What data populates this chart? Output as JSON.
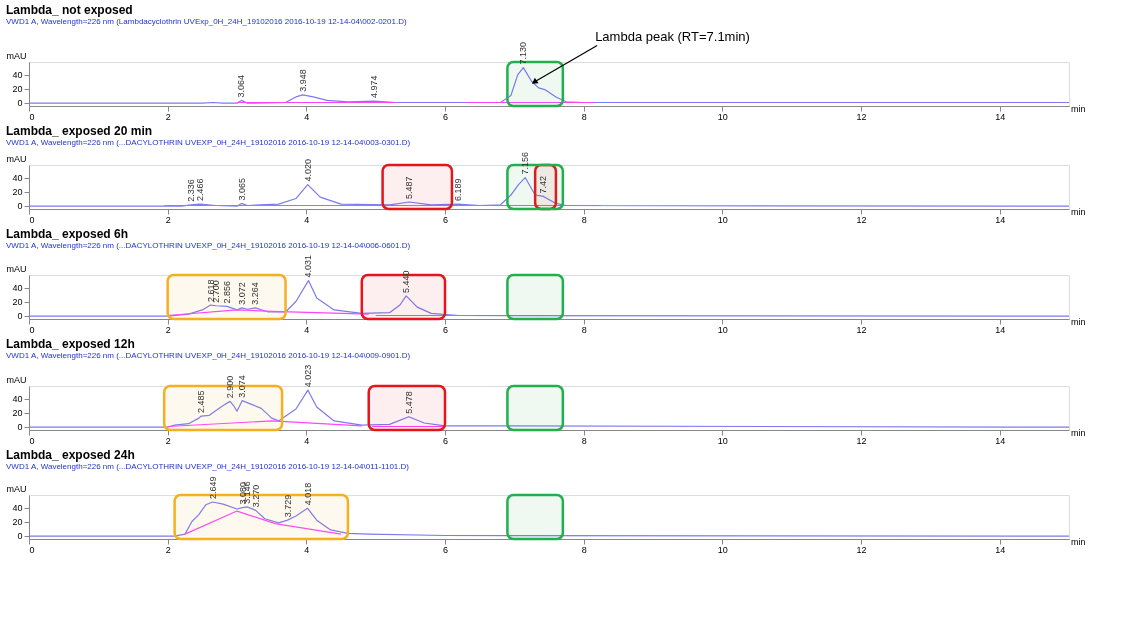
{
  "chart_data": [
    {
      "type": "line",
      "title": "Lambda_ not exposed",
      "grid": false,
      "subtitle": "VWD1 A, Wavelength=226 nm (Lambdacyclothrin UVExp_0H_24H_19102016 2016-10-19 12-14-04\\002-0201.D)",
      "xlabel": "min",
      "ylabel": "mAU",
      "xlim": [
        0,
        15
      ],
      "xticks": [
        0,
        2,
        4,
        6,
        8,
        10,
        12,
        14
      ],
      "ylim": [
        -5,
        58
      ],
      "yticks": [
        0,
        20,
        40
      ],
      "series": [
        {
          "color": "#7b7bf0",
          "x": [
            0,
            2.5,
            2.65,
            2.8,
            3.0,
            3.064,
            3.15,
            3.7,
            3.85,
            3.948,
            4.1,
            4.3,
            4.6,
            4.974,
            5.3,
            6.8,
            6.95,
            7.05,
            7.13,
            7.25,
            7.35,
            7.45,
            7.6,
            7.75,
            8.0,
            15
          ],
          "values": [
            -1,
            -1,
            0,
            -1,
            -1,
            3,
            -1,
            0,
            8,
            11,
            8,
            3,
            1,
            2,
            0,
            0,
            10,
            40,
            50,
            30,
            21,
            18,
            8,
            1,
            0,
            0
          ]
        },
        {
          "color": "#ff44ff",
          "x": [
            3.0,
            5.3
          ],
          "values": [
            0,
            0
          ]
        },
        {
          "color": "#ff44ff",
          "x": [
            6.3,
            8.15
          ],
          "values": [
            0,
            0
          ]
        }
      ],
      "bands": [
        {
          "axis": "x",
          "from": 6.9,
          "to": 7.7,
          "color": "#22b04c"
        }
      ],
      "annotations": [
        {
          "text": "3.064",
          "x": 3.064,
          "y": 3
        },
        {
          "text": "3.948",
          "x": 3.948,
          "y": 11
        },
        {
          "text": "4.974",
          "x": 4.974,
          "y": 2
        },
        {
          "text": "7.130",
          "x": 7.13,
          "y": 50
        },
        {
          "text": "Lambda peak (RT=7.1min)",
          "x": 7.3,
          "y": 30
        }
      ]
    },
    {
      "type": "line",
      "title": "Lambda_ exposed 20 min",
      "grid": false,
      "subtitle": "VWD1 A, Wavelength=226 nm (...DACYLOTHRIN UVEXP_0H_24H_19102016 2016-10-19 12-14-04\\003-0301.D)",
      "xlabel": "min",
      "ylabel": "mAU",
      "xlim": [
        0,
        15
      ],
      "xticks": [
        0,
        2,
        4,
        6,
        8,
        10,
        12,
        14
      ],
      "ylim": [
        -5,
        58
      ],
      "yticks": [
        0,
        20,
        40
      ],
      "series": [
        {
          "color": "#7b7bf0",
          "x": [
            0,
            2.2,
            2.336,
            2.466,
            2.7,
            3.0,
            3.065,
            3.15,
            3.6,
            3.85,
            4.02,
            4.2,
            4.5,
            5.2,
            5.487,
            5.8,
            6.189,
            6.5,
            6.8,
            6.95,
            7.06,
            7.156,
            7.3,
            7.42,
            7.6,
            7.75,
            15
          ],
          "values": [
            -1,
            -1,
            1,
            2,
            0,
            -1,
            3,
            0,
            2,
            10,
            30,
            12,
            2,
            1,
            5,
            1,
            2,
            0,
            1,
            15,
            30,
            40,
            15,
            13,
            3,
            0,
            -1
          ]
        },
        {
          "color": "#ff44ff",
          "x": [
            1.95,
            8.25
          ],
          "values": [
            0,
            0
          ]
        }
      ],
      "bands": [
        {
          "axis": "x",
          "from": 5.1,
          "to": 6.1,
          "color": "#e8141c"
        },
        {
          "axis": "x",
          "from": 7.3,
          "to": 7.6,
          "color": "#e8141c"
        },
        {
          "axis": "x",
          "from": 6.9,
          "to": 7.7,
          "color": "#22b04c"
        }
      ],
      "annotations": [
        {
          "text": "2.336",
          "x": 2.336,
          "y": 1
        },
        {
          "text": "2.466",
          "x": 2.466,
          "y": 2
        },
        {
          "text": "3.065",
          "x": 3.065,
          "y": 3
        },
        {
          "text": "4.020",
          "x": 4.02,
          "y": 30
        },
        {
          "text": "5.487",
          "x": 5.487,
          "y": 5
        },
        {
          "text": "6.189",
          "x": 6.189,
          "y": 2
        },
        {
          "text": "7.156",
          "x": 7.156,
          "y": 40
        },
        {
          "text": "7.42",
          "x": 7.42,
          "y": 13
        }
      ]
    },
    {
      "type": "line",
      "title": "Lambda_ exposed 6h",
      "grid": false,
      "subtitle": "VWD1 A, Wavelength=226 nm (...DACYLOTHRIN UVEXP_0H_24H_19102016 2016-10-19 12-14-04\\006-0601.D)",
      "xlabel": "min",
      "ylabel": "mAU",
      "xlim": [
        0,
        15
      ],
      "xticks": [
        0,
        2,
        4,
        6,
        8,
        10,
        12,
        14
      ],
      "ylim": [
        -5,
        58
      ],
      "yticks": [
        0,
        20,
        40
      ],
      "series": [
        {
          "color": "#7b7bf0",
          "x": [
            0,
            2.0,
            2.3,
            2.5,
            2.618,
            2.7,
            2.856,
            3.0,
            3.072,
            3.15,
            3.264,
            3.45,
            3.7,
            3.85,
            4.031,
            4.15,
            4.4,
            4.8,
            5.2,
            5.35,
            5.44,
            5.6,
            5.8,
            6.2,
            15
          ],
          "values": [
            -1,
            -1,
            2,
            8,
            15,
            14,
            13,
            8,
            11,
            9,
            11,
            5,
            5,
            20,
            50,
            25,
            8,
            3,
            4,
            15,
            28,
            12,
            3,
            0,
            -1
          ]
        },
        {
          "color": "#ff44ff",
          "x": [
            2.0,
            3.0,
            3.5,
            4.9
          ],
          "values": [
            0,
            8,
            6,
            2
          ]
        },
        {
          "color": "#ff44ff",
          "x": [
            5.0,
            6.4
          ],
          "values": [
            0,
            0
          ]
        }
      ],
      "bands": [
        {
          "axis": "x",
          "from": 2.0,
          "to": 3.7,
          "color": "#f5b020"
        },
        {
          "axis": "x",
          "from": 4.8,
          "to": 6.0,
          "color": "#e8141c"
        },
        {
          "axis": "x",
          "from": 6.9,
          "to": 7.7,
          "color": "#22b04c"
        }
      ],
      "annotations": [
        {
          "text": "2.618",
          "x": 2.618,
          "y": 15
        },
        {
          "text": "2.700",
          "x": 2.7,
          "y": 14
        },
        {
          "text": "2.856",
          "x": 2.856,
          "y": 13
        },
        {
          "text": "3.072",
          "x": 3.072,
          "y": 11
        },
        {
          "text": "3.264",
          "x": 3.264,
          "y": 11
        },
        {
          "text": "4.031",
          "x": 4.031,
          "y": 50
        },
        {
          "text": "5.440",
          "x": 5.44,
          "y": 28
        }
      ]
    },
    {
      "type": "line",
      "title": "Lambda_ exposed 12h",
      "grid": false,
      "subtitle": "VWD1 A, Wavelength=226 nm (...DACYLOTHRIN UVEXP_0H_24H_19102016 2016-10-19 12-14-04\\009-0901.D)",
      "xlabel": "min",
      "ylabel": "mAU",
      "xlim": [
        0,
        15
      ],
      "xticks": [
        0,
        2,
        4,
        6,
        8,
        10,
        12,
        14
      ],
      "ylim": [
        -5,
        58
      ],
      "yticks": [
        0,
        20,
        40
      ],
      "series": [
        {
          "color": "#7b7bf0",
          "x": [
            0,
            2.0,
            2.1,
            2.3,
            2.45,
            2.485,
            2.6,
            2.8,
            2.9,
            2.95,
            3.0,
            3.074,
            3.2,
            3.35,
            3.5,
            3.6,
            3.85,
            4.023,
            4.15,
            4.4,
            4.8,
            5.2,
            5.478,
            5.7,
            6.0,
            15
          ],
          "values": [
            -1,
            -1,
            2,
            4,
            12,
            15,
            16,
            30,
            36,
            30,
            22,
            37,
            32,
            26,
            12,
            8,
            25,
            52,
            28,
            8,
            2,
            3,
            14,
            5,
            1,
            -1
          ]
        },
        {
          "color": "#ff44ff",
          "x": [
            2.0,
            3.5,
            4.8
          ],
          "values": [
            0,
            8,
            1
          ]
        },
        {
          "color": "#ff44ff",
          "x": [
            4.95,
            6.0
          ],
          "values": [
            0,
            0
          ]
        }
      ],
      "bands": [
        {
          "axis": "x",
          "from": 1.95,
          "to": 3.65,
          "color": "#f5b020"
        },
        {
          "axis": "x",
          "from": 4.9,
          "to": 6.0,
          "color": "#e8141c"
        },
        {
          "axis": "x",
          "from": 6.9,
          "to": 7.7,
          "color": "#22b04c"
        }
      ],
      "annotations": [
        {
          "text": "2.485",
          "x": 2.485,
          "y": 15
        },
        {
          "text": "2.900",
          "x": 2.9,
          "y": 36
        },
        {
          "text": "3.074",
          "x": 3.074,
          "y": 37
        },
        {
          "text": "4.023",
          "x": 4.023,
          "y": 52
        },
        {
          "text": "5.478",
          "x": 5.478,
          "y": 14
        }
      ]
    },
    {
      "type": "line",
      "title": "Lambda_ exposed 24h",
      "grid": false,
      "subtitle": "VWD1 A, Wavelength=226 nm (...DACYLOTHRIN UVEXP_0H_24H_19102016 2016-10-19 12-14-04\\011-1101.D)",
      "xlabel": "min",
      "ylabel": "mAU",
      "xlim": [
        0,
        15
      ],
      "xticks": [
        0,
        2,
        4,
        6,
        8,
        10,
        12,
        14
      ],
      "ylim": [
        -5,
        58
      ],
      "yticks": [
        0,
        20,
        40
      ],
      "series": [
        {
          "color": "#7b7bf0",
          "x": [
            0,
            2.1,
            2.25,
            2.35,
            2.45,
            2.55,
            2.649,
            2.8,
            3.0,
            3.08,
            3.146,
            3.27,
            3.4,
            3.6,
            3.729,
            3.85,
            4.018,
            4.15,
            4.35,
            4.6,
            4.9,
            6.0,
            15
          ],
          "values": [
            -1,
            -1,
            2,
            20,
            30,
            44,
            48,
            45,
            38,
            40,
            41,
            36,
            24,
            18,
            22,
            28,
            39,
            22,
            8,
            3,
            2,
            0,
            -1
          ]
        },
        {
          "color": "#ff44ff",
          "x": [
            2.25,
            3.0,
            3.55,
            4.5
          ],
          "values": [
            2,
            35,
            17,
            2
          ]
        }
      ],
      "bands": [
        {
          "axis": "x",
          "from": 2.1,
          "to": 4.6,
          "color": "#f5b020"
        },
        {
          "axis": "x",
          "from": 6.9,
          "to": 7.7,
          "color": "#22b04c"
        }
      ],
      "annotations": [
        {
          "text": "2.649",
          "x": 2.649,
          "y": 48
        },
        {
          "text": "3.080",
          "x": 3.08,
          "y": 40
        },
        {
          "text": "3.146",
          "x": 3.146,
          "y": 41
        },
        {
          "text": "3.270",
          "x": 3.27,
          "y": 36
        },
        {
          "text": "3.729",
          "x": 3.729,
          "y": 22
        },
        {
          "text": "4.018",
          "x": 4.018,
          "y": 39
        }
      ]
    }
  ]
}
